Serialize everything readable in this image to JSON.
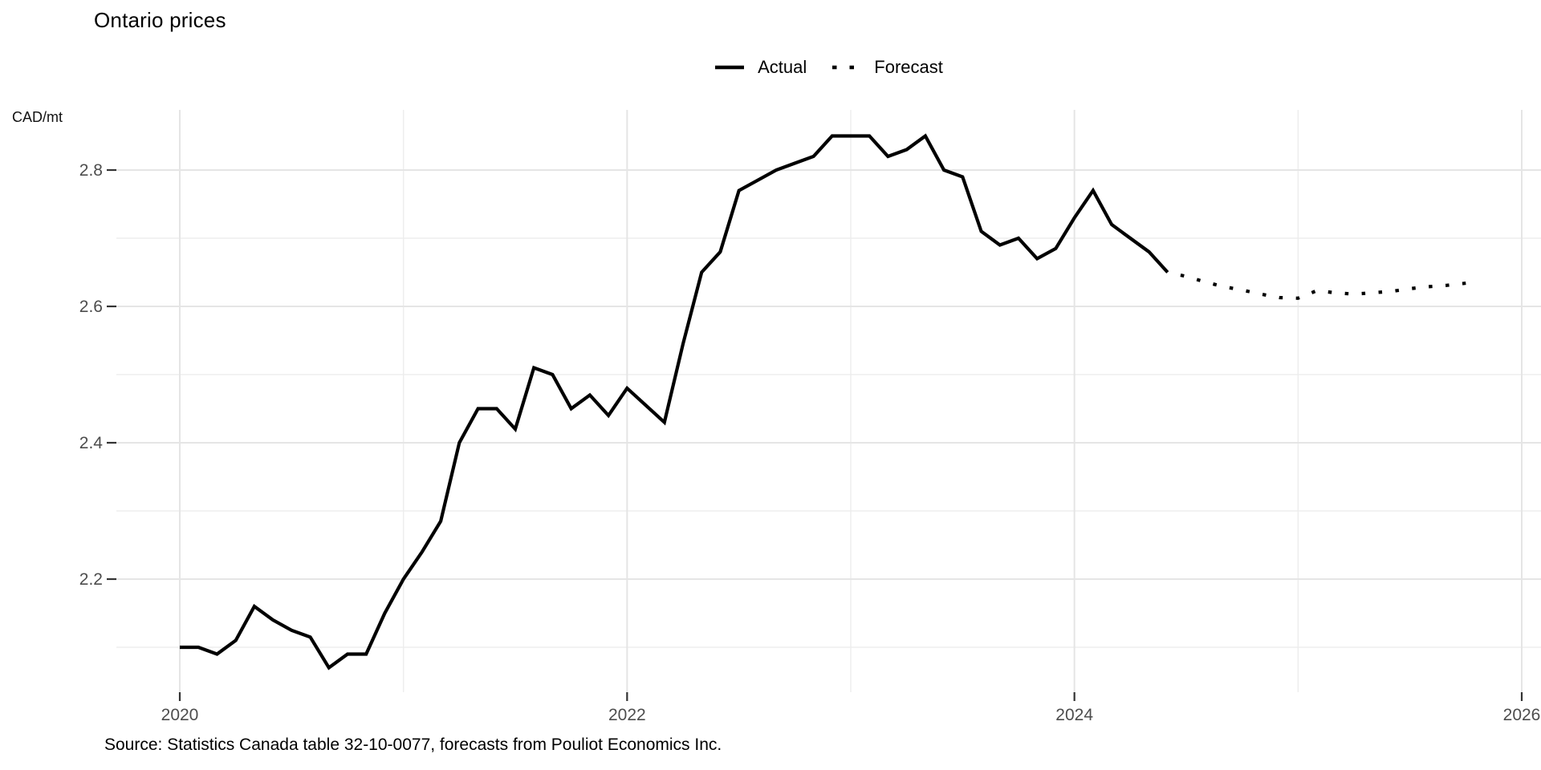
{
  "title": "Ontario prices",
  "y_unit_label": "CAD/mt",
  "caption": "Source: Statistics Canada table 32-10-0077, forecasts from Pouliot Economics Inc.",
  "legend": {
    "actual_label": "Actual",
    "forecast_label": "Forecast"
  },
  "colors": {
    "line": "#000000",
    "grid_major": "#E5E5E5",
    "grid_minor": "#EDEDED",
    "tick_mark": "#333333",
    "tick_label": "#4D4D4D",
    "background": "#FFFFFF"
  },
  "chart_data": {
    "type": "line",
    "title": "Ontario prices",
    "ylabel": "CAD/mt",
    "xlabel": "",
    "legend_position": "top",
    "grid": true,
    "x_axis": {
      "major_ticks": [
        "2020",
        "2022",
        "2024",
        "2026"
      ],
      "minor_gridlines": [
        "2021",
        "2023",
        "2025"
      ]
    },
    "y_axis": {
      "major_ticks": [
        2.2,
        2.4,
        2.6,
        2.8
      ],
      "minor_gridlines": [
        2.1,
        2.3,
        2.5,
        2.7
      ],
      "range": [
        2.03,
        2.89
      ]
    },
    "series": [
      {
        "name": "Actual",
        "line_style": "solid",
        "color": "#000000",
        "frequency": "monthly",
        "start_month": "2020-01",
        "values": [
          2.1,
          2.1,
          2.09,
          2.11,
          2.16,
          2.14,
          2.125,
          2.115,
          2.07,
          2.09,
          2.09,
          2.15,
          2.2,
          2.24,
          2.285,
          2.4,
          2.45,
          2.45,
          2.42,
          2.51,
          2.5,
          2.45,
          2.47,
          2.44,
          2.48,
          2.455,
          2.43,
          2.545,
          2.65,
          2.68,
          2.77,
          2.785,
          2.8,
          2.81,
          2.82,
          2.85,
          2.85,
          2.85,
          2.82,
          2.83,
          2.85,
          2.8,
          2.79,
          2.71,
          2.69,
          2.7,
          2.67,
          2.685,
          2.73,
          2.77,
          2.72,
          2.7,
          2.68,
          2.65
        ]
      },
      {
        "name": "Forecast",
        "line_style": "dotted",
        "color": "#000000",
        "frequency": "monthly",
        "start_month": "2024-06",
        "values": [
          2.65,
          2.644,
          2.636,
          2.629,
          2.624,
          2.618,
          2.613,
          2.612,
          2.623,
          2.62,
          2.618,
          2.62,
          2.622,
          2.626,
          2.629,
          2.631,
          2.634
        ]
      }
    ]
  }
}
